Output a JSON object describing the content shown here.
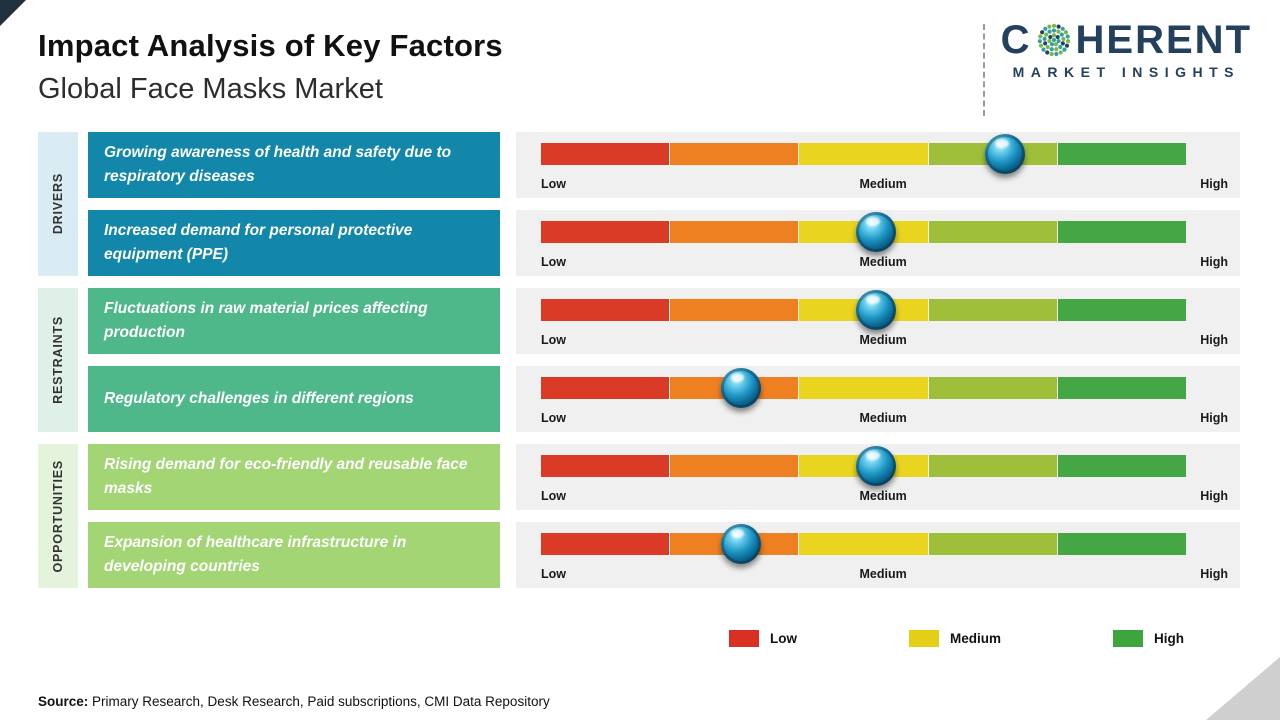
{
  "header": {
    "title": "Impact Analysis of Key Factors",
    "subtitle": "Global Face Masks Market"
  },
  "logo": {
    "name_prefix": "C",
    "name_suffix": "HERENT",
    "tagline": "MARKET INSIGHTS",
    "text_color": "#23405E",
    "o_dot_colors": [
      "#2FA0A8",
      "#7AB648",
      "#23405E",
      "#2FA0A8",
      "#7AB648"
    ]
  },
  "groups": [
    {
      "label": "DRIVERS",
      "box_color": "#1387A9",
      "label_bg": "#D9EBF3",
      "rows": [
        {
          "text": "Growing awareness of health and safety due to respiratory diseases"
        },
        {
          "text": "Increased demand for personal protective equipment (PPE)"
        }
      ]
    },
    {
      "label": "RESTRAINTS",
      "box_color": "#4EB88A",
      "label_bg": "#DFF0E8",
      "rows": [
        {
          "text": "Fluctuations in raw material prices affecting production"
        },
        {
          "text": "Regulatory challenges in different regions"
        }
      ]
    },
    {
      "label": "OPPORTUNITIES",
      "box_color": "#A3D575",
      "label_bg": "#E6F3DC",
      "rows": [
        {
          "text": "Rising demand for eco-friendly and reusable face masks"
        },
        {
          "text": "Expansion of healthcare infrastructure in developing countries"
        }
      ]
    }
  ],
  "scale_labels": {
    "low": "Low",
    "medium": "Medium",
    "high": "High"
  },
  "bar": {
    "segment_colors": [
      "#DA3B26",
      "#EF8022",
      "#E9D420",
      "#9FBF3B",
      "#44A644"
    ],
    "track_bg": "#F0F0F0"
  },
  "legend": [
    {
      "label": "Low",
      "color": "#D93025"
    },
    {
      "label": "Medium",
      "color": "#E4CF16"
    },
    {
      "label": "High",
      "color": "#3EA53E"
    }
  ],
  "source": {
    "label": "Source:",
    "text": "Primary Research, Desk Research, Paid subscriptions, CMI Data Repository"
  },
  "chart_data": {
    "type": "bar",
    "title": "Impact Analysis of Key Factors",
    "subtitle": "Global Face Masks Market",
    "scale": [
      "Low",
      "Medium",
      "High"
    ],
    "axis": {
      "min_label": "Low",
      "mid_label": "Medium",
      "max_label": "High",
      "range_pct": [
        0,
        100
      ]
    },
    "legend": [
      "Low",
      "Medium",
      "High"
    ],
    "legend_position": "bottom-right",
    "points": [
      {
        "group": "DRIVERS",
        "factor": "Growing awareness of health and safety due to respiratory diseases",
        "impact_pct": 72,
        "level": "Medium-High"
      },
      {
        "group": "DRIVERS",
        "factor": "Increased demand for personal protective equipment (PPE)",
        "impact_pct": 52,
        "level": "Medium"
      },
      {
        "group": "RESTRAINTS",
        "factor": "Fluctuations in raw material prices affecting production",
        "impact_pct": 52,
        "level": "Medium"
      },
      {
        "group": "RESTRAINTS",
        "factor": "Regulatory challenges in different regions",
        "impact_pct": 31,
        "level": "Low-Medium"
      },
      {
        "group": "OPPORTUNITIES",
        "factor": "Rising demand for eco-friendly and reusable face masks",
        "impact_pct": 52,
        "level": "Medium"
      },
      {
        "group": "OPPORTUNITIES",
        "factor": "Expansion of healthcare infrastructure in developing countries",
        "impact_pct": 31,
        "level": "Low-Medium"
      }
    ]
  }
}
